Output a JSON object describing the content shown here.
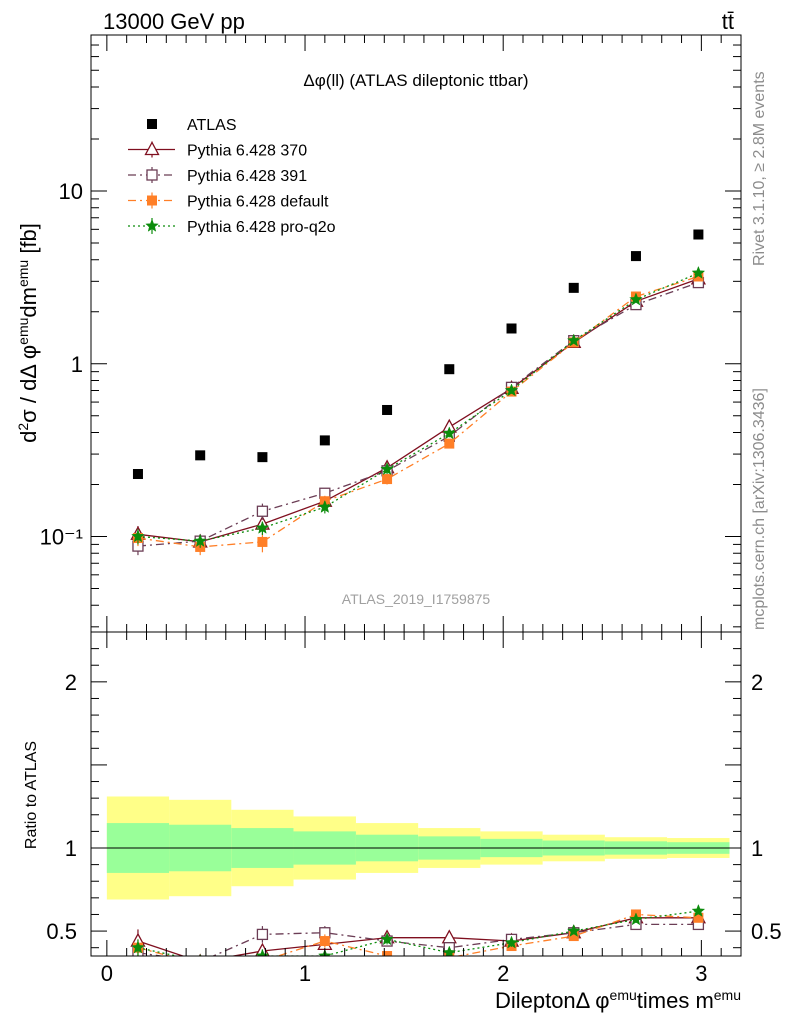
{
  "header": {
    "energy": "13000 GeV pp",
    "process": "tt̄"
  },
  "side_labels": {
    "rivet": "Rivet 3.1.10, ≥ 2.8M events",
    "mcplots": "mcplots.cern.ch [arXiv:1306.3436]"
  },
  "watermark": "ATLAS_2019_I1759875",
  "chart_data": [
    {
      "type": "scatter",
      "panel": "main",
      "title": "Δφ(ll) (ATLAS dileptonic ttbar)",
      "ylabel": "d²σ / dΔφ^emu dm^emu [fb]",
      "yscale": "log",
      "xlim": [
        -0.08,
        3.2
      ],
      "ylim": [
        0.028,
        80
      ],
      "yticks": [
        {
          "value": 0.1,
          "label": "10⁻¹"
        },
        {
          "value": 1,
          "label": "1"
        },
        {
          "value": 10,
          "label": "10"
        }
      ],
      "legend_position": "top-left",
      "x": [
        0.157,
        0.471,
        0.785,
        1.1,
        1.414,
        1.728,
        2.042,
        2.356,
        2.67,
        2.985
      ],
      "series": [
        {
          "name": "ATLAS",
          "color": "#000000",
          "marker": "square-filled",
          "values": [
            0.23,
            0.295,
            0.288,
            0.36,
            0.54,
            0.93,
            1.6,
            2.75,
            4.2,
            5.6
          ]
        },
        {
          "name": "Pythia 6.428 370",
          "color": "#7f0f1f",
          "marker": "triangle-open",
          "dash": "",
          "values": [
            0.103,
            0.093,
            0.118,
            0.16,
            0.25,
            0.43,
            0.72,
            1.33,
            2.3,
            3.1
          ],
          "errors": [
            0.012,
            0.008,
            0.01,
            0.012,
            0.015,
            0.025,
            0.03,
            0.04,
            0.06,
            0.08
          ]
        },
        {
          "name": "Pythia 6.428 391",
          "color": "#6b3d55",
          "marker": "square-open",
          "dash": "8,4,2,4",
          "values": [
            0.088,
            0.094,
            0.14,
            0.178,
            0.24,
            0.38,
            0.73,
            1.36,
            2.2,
            2.95
          ],
          "errors": [
            0.01,
            0.009,
            0.015,
            0.012,
            0.015,
            0.02,
            0.03,
            0.04,
            0.06,
            0.08
          ]
        },
        {
          "name": "Pythia 6.428 default",
          "color": "#ff7f27",
          "marker": "square-filled",
          "dash": "8,4,2,4",
          "values": [
            0.098,
            0.087,
            0.093,
            0.16,
            0.215,
            0.345,
            0.69,
            1.33,
            2.45,
            3.2
          ],
          "errors": [
            0.01,
            0.009,
            0.012,
            0.012,
            0.015,
            0.02,
            0.03,
            0.04,
            0.06,
            0.08
          ]
        },
        {
          "name": "Pythia 6.428 pro-q2o",
          "color": "#0c8c0c",
          "marker": "star",
          "dash": "2,3",
          "values": [
            0.1,
            0.094,
            0.112,
            0.148,
            0.245,
            0.395,
            0.7,
            1.36,
            2.35,
            3.35
          ],
          "errors": [
            0.01,
            0.008,
            0.01,
            0.012,
            0.015,
            0.02,
            0.03,
            0.04,
            0.06,
            0.08
          ]
        }
      ]
    },
    {
      "type": "scatter",
      "panel": "ratio",
      "xlabel": "Dilepton Δ φ^emu times m^emu",
      "ylabel": "Ratio to ATLAS",
      "xlim": [
        -0.08,
        3.2
      ],
      "ylim": [
        0.35,
        2.3
      ],
      "xticks": [
        0,
        1,
        2,
        3
      ],
      "yticks": [
        0.5,
        1,
        2
      ],
      "x": [
        0.157,
        0.471,
        0.785,
        1.1,
        1.414,
        1.728,
        2.042,
        2.356,
        2.67,
        2.985
      ],
      "bands": {
        "bin_edges": [
          0.0,
          0.314,
          0.628,
          0.942,
          1.257,
          1.571,
          1.885,
          2.199,
          2.513,
          2.827,
          3.142
        ],
        "inner": [
          0.15,
          0.14,
          0.12,
          0.1,
          0.08,
          0.07,
          0.055,
          0.045,
          0.04,
          0.035
        ],
        "outer": [
          0.31,
          0.29,
          0.23,
          0.19,
          0.15,
          0.12,
          0.1,
          0.08,
          0.065,
          0.06
        ],
        "inner_color": "#99ff99",
        "outer_color": "#ffff88"
      },
      "series": [
        {
          "name": "Pythia 6.428 370",
          "values": [
            0.44,
            0.315,
            0.38,
            0.42,
            0.46,
            0.46,
            0.44,
            0.49,
            0.58,
            0.58
          ],
          "errors": [
            0.07,
            0.03,
            0.04,
            0.04,
            0.04,
            0.03,
            0.025,
            0.02,
            0.02,
            0.02
          ]
        },
        {
          "name": "Pythia 6.428 391",
          "values": [
            0.37,
            0.315,
            0.48,
            0.49,
            0.44,
            0.4,
            0.45,
            0.49,
            0.54,
            0.54
          ],
          "errors": [
            0.05,
            0.03,
            0.05,
            0.04,
            0.03,
            0.025,
            0.025,
            0.02,
            0.02,
            0.02
          ]
        },
        {
          "name": "Pythia 6.428 default",
          "values": [
            0.4,
            0.3,
            0.32,
            0.44,
            0.35,
            0.34,
            0.41,
            0.47,
            0.6,
            0.58
          ],
          "errors": [
            0.05,
            0.03,
            0.04,
            0.04,
            0.03,
            0.025,
            0.025,
            0.02,
            0.02,
            0.02
          ]
        },
        {
          "name": "Pythia 6.428 pro-q2o",
          "values": [
            0.4,
            0.32,
            0.35,
            0.35,
            0.45,
            0.37,
            0.43,
            0.5,
            0.57,
            0.62
          ],
          "errors": [
            0.05,
            0.03,
            0.04,
            0.03,
            0.03,
            0.025,
            0.025,
            0.02,
            0.02,
            0.02
          ]
        }
      ]
    }
  ]
}
